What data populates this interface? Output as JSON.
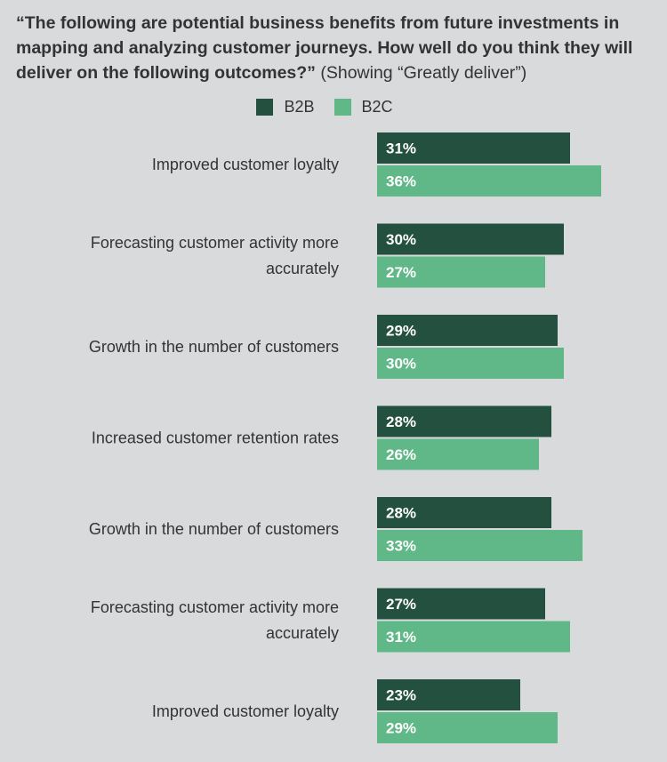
{
  "header": {
    "question": "“The following are potential business benefits from future investments in mapping and analyzing customer journeys. How well do you think they will deliver on the following outcomes?”",
    "note": "(Showing “Greatly deliver”)"
  },
  "colors": {
    "b2b": "#23503f",
    "b2c": "#60b888"
  },
  "chart_data": {
    "type": "bar",
    "orientation": "horizontal",
    "categories": [
      "Improved customer loyalty",
      "Forecasting customer activity more accurately",
      "Growth in the number of customers",
      "Increased customer retention rates",
      "Growth in the number of customers",
      "Forecasting customer activity more accurately",
      "Improved customer loyalty"
    ],
    "category_lines": [
      [
        "Improved customer loyalty"
      ],
      [
        "Forecasting customer activity more",
        "accurately"
      ],
      [
        "Growth in the number of customers"
      ],
      [
        "Increased customer retention rates"
      ],
      [
        "Growth in the number of customers"
      ],
      [
        "Forecasting customer activity more",
        "accurately"
      ],
      [
        "Improved customer loyalty"
      ]
    ],
    "series": [
      {
        "name": "B2B",
        "values": [
          31,
          30,
          29,
          28,
          28,
          27,
          23
        ],
        "labels": [
          "31%",
          "30%",
          "29%",
          "28%",
          "28%",
          "27%",
          "23%"
        ]
      },
      {
        "name": "B2C",
        "values": [
          36,
          27,
          30,
          26,
          33,
          31,
          29
        ],
        "labels": [
          "36%",
          "27%",
          "30%",
          "26%",
          "33%",
          "31%",
          "29%"
        ]
      }
    ],
    "title": "",
    "xlabel": "",
    "ylabel": "",
    "xlim": [
      0,
      100
    ],
    "legend": "top",
    "grid": false
  }
}
